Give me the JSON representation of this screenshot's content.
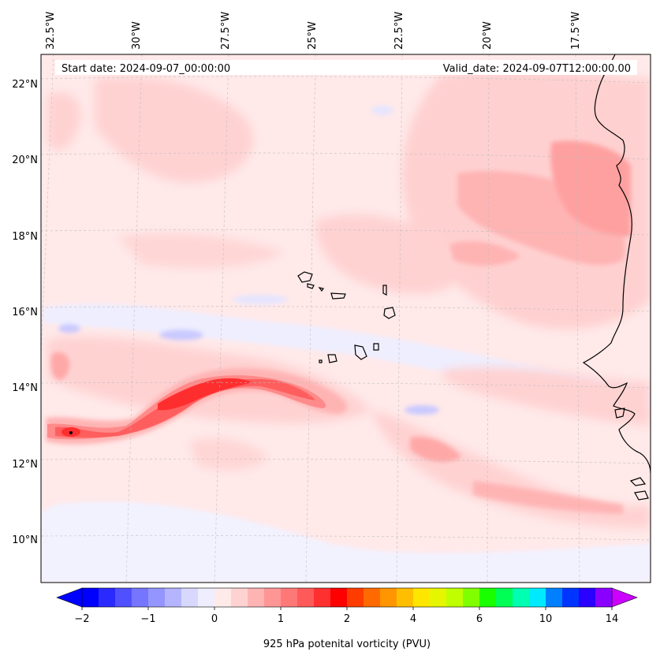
{
  "header": {
    "start_date": "Start date: 2024-09-07_00:00:00",
    "valid_date": "Valid_date: 2024-09-07T12:00:00.00"
  },
  "map": {
    "lon_labels": [
      "32.5°W",
      "30°W",
      "27.5°W",
      "25°W",
      "22.5°W",
      "20°W",
      "17.5°W"
    ],
    "lat_labels": [
      "22°N",
      "20°N",
      "18°N",
      "16°N",
      "14°N",
      "12°N",
      "10°N"
    ],
    "lon_range": [
      -33,
      -15.5
    ],
    "lat_range": [
      9,
      23
    ]
  },
  "colorbar": {
    "title": "925 hPa potenital vorticity (PVU)",
    "tick_labels": [
      "−2",
      "−1",
      "0",
      "1",
      "2",
      "4",
      "6",
      "10",
      "14"
    ],
    "colors": [
      "#0000ff",
      "#2a2aff",
      "#5050ff",
      "#7575ff",
      "#9595ff",
      "#b5b5ff",
      "#d8d8ff",
      "#eeeeff",
      "#ffeaea",
      "#ffd2d2",
      "#ffb4b4",
      "#ff9696",
      "#ff7878",
      "#ff5a5a",
      "#ff3030",
      "#ff0000",
      "#ff3c00",
      "#ff6a00",
      "#ff9500",
      "#ffbe00",
      "#ffe600",
      "#e6f500",
      "#bfff00",
      "#80ff00",
      "#1aff00",
      "#00ff55",
      "#00ffb0",
      "#00eaff",
      "#0080ff",
      "#0035ff",
      "#2a00ff",
      "#8a00ff"
    ],
    "extend_min_color": "#0000ff",
    "extend_max_color": "#cc00ff"
  },
  "colors": {
    "background_pv": "#ffe9e9",
    "coastline": "#000000"
  }
}
